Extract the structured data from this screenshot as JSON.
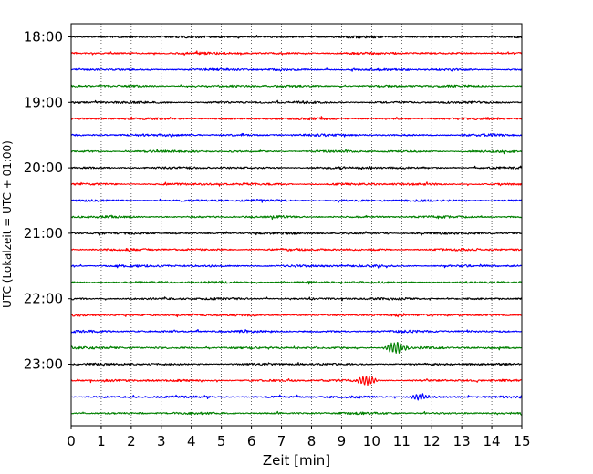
{
  "chart_data": {
    "type": "line",
    "title": "",
    "xlabel": "Zeit  [min]",
    "ylabel": "UTC (Lokalzeit = UTC + 01:00)",
    "xlim": [
      0,
      15
    ],
    "x_ticks": [
      "0",
      "1",
      "2",
      "3",
      "4",
      "5",
      "6",
      "7",
      "8",
      "9",
      "10",
      "11",
      "12",
      "13",
      "14",
      "15"
    ],
    "y_ticks": [
      "18:00",
      "19:00",
      "20:00",
      "21:00",
      "22:00",
      "23:00"
    ],
    "grid": "vertical dotted lines at every minute",
    "row_minutes": 15,
    "rows_per_hour": 4,
    "colors": [
      "#000000",
      "#ff0000",
      "#0000ff",
      "#008000"
    ],
    "series": [
      {
        "start": "18:00",
        "color": "#000000"
      },
      {
        "start": "18:15",
        "color": "#ff0000"
      },
      {
        "start": "18:30",
        "color": "#0000ff"
      },
      {
        "start": "18:45",
        "color": "#008000"
      },
      {
        "start": "19:00",
        "color": "#000000"
      },
      {
        "start": "19:15",
        "color": "#ff0000"
      },
      {
        "start": "19:30",
        "color": "#0000ff"
      },
      {
        "start": "19:45",
        "color": "#008000"
      },
      {
        "start": "20:00",
        "color": "#000000"
      },
      {
        "start": "20:15",
        "color": "#ff0000"
      },
      {
        "start": "20:30",
        "color": "#0000ff"
      },
      {
        "start": "20:45",
        "color": "#008000"
      },
      {
        "start": "21:00",
        "color": "#000000"
      },
      {
        "start": "21:15",
        "color": "#ff0000"
      },
      {
        "start": "21:30",
        "color": "#0000ff"
      },
      {
        "start": "21:45",
        "color": "#008000"
      },
      {
        "start": "22:00",
        "color": "#000000"
      },
      {
        "start": "22:15",
        "color": "#ff0000"
      },
      {
        "start": "22:30",
        "color": "#0000ff"
      },
      {
        "start": "22:45",
        "color": "#008000",
        "events": [
          {
            "x": 10.8,
            "amp": 1.6
          }
        ]
      },
      {
        "start": "23:00",
        "color": "#000000"
      },
      {
        "start": "23:15",
        "color": "#ff0000",
        "events": [
          {
            "x": 9.85,
            "amp": 1.2
          }
        ]
      },
      {
        "start": "23:30",
        "color": "#0000ff",
        "events": [
          {
            "x": 11.6,
            "amp": 0.9
          }
        ]
      },
      {
        "start": "23:45",
        "color": "#008000"
      }
    ]
  }
}
